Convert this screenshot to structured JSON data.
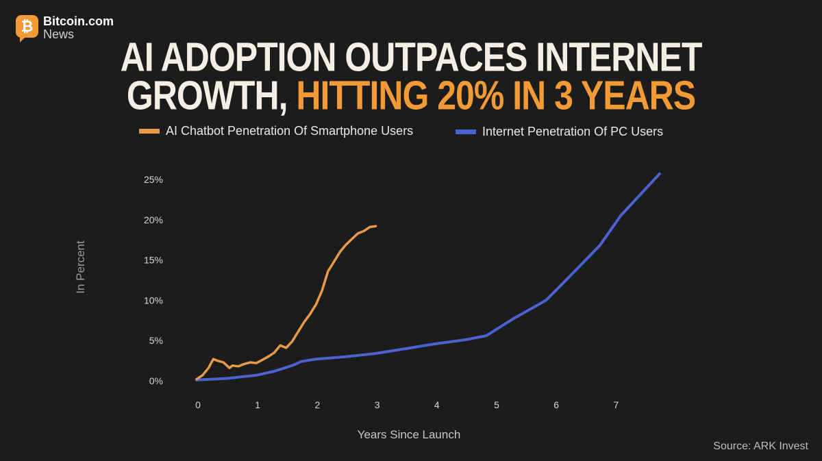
{
  "logo": {
    "name": "Bitcoin.com",
    "sub": "News",
    "glyph": "₿"
  },
  "headline": {
    "line1": "AI ADOPTION OUTPACES INTERNET",
    "line2_plain": "GROWTH, ",
    "line2_accent": "HITTING 20% IN 3 YEARS"
  },
  "source": "Source: ARK Invest",
  "colors": {
    "background": "#1c1c1c",
    "accent": "#f19a36",
    "ai_line": "#e89a48",
    "internet_line": "#4a63d1"
  },
  "chart_data": {
    "type": "line",
    "title": "",
    "xlabel": "Years Since Launch",
    "ylabel": "In Percent",
    "xlim": [
      -0.05,
      7.9
    ],
    "ylim": [
      0,
      25
    ],
    "grid": false,
    "legend_position": "top",
    "x_ticks": [
      "0",
      "1",
      "2",
      "3",
      "4",
      "5",
      "6",
      "7"
    ],
    "y_ticks": [
      "0%",
      "5%",
      "10%",
      "15%",
      "20%",
      "25%"
    ],
    "series": [
      {
        "name": "AI Chatbot Penetration Of Smartphone Users",
        "color": "#e89a48",
        "x": [
          0,
          0.1,
          0.2,
          0.28,
          0.35,
          0.45,
          0.55,
          0.6,
          0.7,
          0.8,
          0.9,
          1.0,
          1.1,
          1.2,
          1.3,
          1.4,
          1.5,
          1.6,
          1.7,
          1.8,
          1.9,
          2.0,
          2.1,
          2.2,
          2.3,
          2.4,
          2.5,
          2.6,
          2.7,
          2.8,
          2.9,
          3.0
        ],
        "y": [
          0.2,
          0.7,
          1.6,
          2.7,
          2.5,
          2.3,
          1.6,
          1.9,
          1.8,
          2.1,
          2.3,
          2.2,
          2.6,
          3.0,
          3.5,
          4.4,
          4.1,
          4.9,
          6.1,
          7.3,
          8.3,
          9.5,
          11.2,
          13.6,
          14.8,
          16.0,
          16.9,
          17.6,
          18.3,
          18.6,
          19.1,
          19.2
        ]
      },
      {
        "name": "Internet Penetration Of PC Users",
        "color": "#4a63d1",
        "x": [
          0,
          0.5,
          1.0,
          1.3,
          1.6,
          1.75,
          2.0,
          2.5,
          3.0,
          3.5,
          4.0,
          4.5,
          4.85,
          5.3,
          5.85,
          6.25,
          6.75,
          7.1,
          7.75
        ],
        "y": [
          0.1,
          0.3,
          0.7,
          1.2,
          1.9,
          2.4,
          2.7,
          3.0,
          3.4,
          4.0,
          4.6,
          5.1,
          5.6,
          7.7,
          10.0,
          13.0,
          16.8,
          20.5,
          25.7
        ]
      }
    ]
  }
}
